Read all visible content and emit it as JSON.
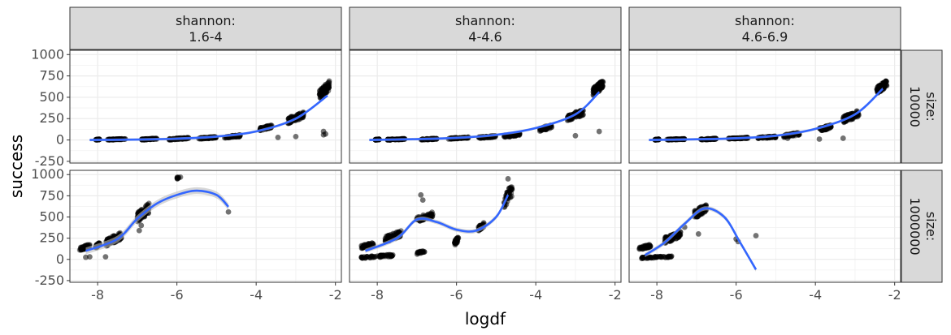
{
  "chart_data": {
    "type": "scatter",
    "xlabel": "logdf",
    "ylabel": "success",
    "xlim": [
      -8.7,
      -1.85
    ],
    "ylim": [
      -270,
      1050
    ],
    "x_ticks": [
      -8,
      -6,
      -4,
      -2
    ],
    "y_ticks": [
      -250,
      0,
      250,
      500,
      750,
      1000
    ],
    "grid": true,
    "colors": {
      "points": "#000000",
      "smooth": "#3366ff",
      "band": "#bdbdbd",
      "strip": "#d9d9d9"
    },
    "column_facets": [
      {
        "line1": "shannon:",
        "line2": "1.6-4"
      },
      {
        "line1": "shannon:",
        "line2": "4-4.6"
      },
      {
        "line1": "shannon:",
        "line2": "4.6-6.9"
      }
    ],
    "row_facets": [
      {
        "line1": "size:",
        "line2": "10000"
      },
      {
        "line1": "size:",
        "line2": "1000000"
      }
    ],
    "panels": [
      {
        "col": 0,
        "row": 0,
        "clusters": [
          {
            "x": [
              -8.05,
              -7.95
            ],
            "y": [
              0,
              10
            ],
            "n": 40
          },
          {
            "x": [
              -7.75,
              -7.3
            ],
            "y": [
              0,
              15
            ],
            "n": 60
          },
          {
            "x": [
              -6.9,
              -6.5
            ],
            "y": [
              0,
              20
            ],
            "n": 60
          },
          {
            "x": [
              -6.2,
              -5.7
            ],
            "y": [
              0,
              30
            ],
            "n": 60
          },
          {
            "x": [
              -5.45,
              -5.0
            ],
            "y": [
              10,
              40
            ],
            "n": 60
          },
          {
            "x": [
              -4.8,
              -4.4
            ],
            "y": [
              20,
              60
            ],
            "n": 60
          },
          {
            "x": [
              -3.9,
              -3.6
            ],
            "y": [
              110,
              180
            ],
            "n": 60
          },
          {
            "x": [
              -3.2,
              -2.8
            ],
            "y": [
              190,
              330
            ],
            "n": 80
          },
          {
            "x": [
              -2.4,
              -2.15
            ],
            "y": [
              470,
              700
            ],
            "n": 80
          }
        ],
        "outliers": [
          [
            -3.45,
            30
          ],
          [
            -3.0,
            40
          ],
          [
            -2.3,
            100
          ],
          [
            -2.3,
            60
          ],
          [
            -2.25,
            70
          ]
        ],
        "smooth": {
          "x": [
            -8.2,
            -7,
            -6,
            -5,
            -4,
            -3,
            -2.2
          ],
          "y": [
            0,
            5,
            15,
            40,
            100,
            250,
            520
          ]
        },
        "band": 15
      },
      {
        "col": 1,
        "row": 0,
        "clusters": [
          {
            "x": [
              -8.05,
              -7.95
            ],
            "y": [
              0,
              10
            ],
            "n": 40
          },
          {
            "x": [
              -7.75,
              -7.3
            ],
            "y": [
              0,
              15
            ],
            "n": 60
          },
          {
            "x": [
              -6.9,
              -6.5
            ],
            "y": [
              0,
              20
            ],
            "n": 60
          },
          {
            "x": [
              -6.2,
              -5.7
            ],
            "y": [
              10,
              35
            ],
            "n": 60
          },
          {
            "x": [
              -5.45,
              -5.0
            ],
            "y": [
              20,
              50
            ],
            "n": 60
          },
          {
            "x": [
              -4.8,
              -4.4
            ],
            "y": [
              30,
              80
            ],
            "n": 60
          },
          {
            "x": [
              -3.9,
              -3.6
            ],
            "y": [
              100,
              180
            ],
            "n": 60
          },
          {
            "x": [
              -3.2,
              -2.8
            ],
            "y": [
              220,
              360
            ],
            "n": 80
          },
          {
            "x": [
              -2.55,
              -2.3
            ],
            "y": [
              520,
              700
            ],
            "n": 80
          }
        ],
        "outliers": [
          [
            -3.0,
            50
          ],
          [
            -2.4,
            100
          ]
        ],
        "smooth": {
          "x": [
            -8.2,
            -7,
            -6,
            -5,
            -4,
            -3,
            -2.4
          ],
          "y": [
            0,
            10,
            25,
            60,
            140,
            300,
            560
          ]
        },
        "band": 15
      },
      {
        "col": 2,
        "row": 0,
        "clusters": [
          {
            "x": [
              -8.05,
              -7.95
            ],
            "y": [
              0,
              10
            ],
            "n": 40
          },
          {
            "x": [
              -7.75,
              -7.3
            ],
            "y": [
              0,
              15
            ],
            "n": 60
          },
          {
            "x": [
              -6.9,
              -6.5
            ],
            "y": [
              0,
              20
            ],
            "n": 60
          },
          {
            "x": [
              -6.2,
              -5.7
            ],
            "y": [
              10,
              30
            ],
            "n": 60
          },
          {
            "x": [
              -5.45,
              -5.0
            ],
            "y": [
              15,
              45
            ],
            "n": 60
          },
          {
            "x": [
              -4.8,
              -4.4
            ],
            "y": [
              30,
              90
            ],
            "n": 60
          },
          {
            "x": [
              -3.9,
              -3.6
            ],
            "y": [
              100,
              180
            ],
            "n": 60
          },
          {
            "x": [
              -3.3,
              -2.9
            ],
            "y": [
              200,
              350
            ],
            "n": 80
          },
          {
            "x": [
              -2.45,
              -2.2
            ],
            "y": [
              540,
              700
            ],
            "n": 80
          }
        ],
        "outliers": [
          [
            -3.9,
            10
          ],
          [
            -3.3,
            20
          ],
          [
            -4.7,
            20
          ]
        ],
        "smooth": {
          "x": [
            -8.2,
            -7,
            -6,
            -5,
            -4,
            -3,
            -2.3
          ],
          "y": [
            0,
            8,
            20,
            50,
            130,
            300,
            600
          ]
        },
        "band": 15
      },
      {
        "col": 0,
        "row": 1,
        "clusters": [
          {
            "x": [
              -8.45,
              -8.2
            ],
            "y": [
              100,
              180
            ],
            "n": 40
          },
          {
            "x": [
              -8.05,
              -7.95
            ],
            "y": [
              130,
              200
            ],
            "n": 30
          },
          {
            "x": [
              -7.8,
              -7.4
            ],
            "y": [
              150,
              320
            ],
            "n": 80
          },
          {
            "x": [
              -7.0,
              -6.7
            ],
            "y": [
              430,
              670
            ],
            "n": 80
          },
          {
            "x": [
              -6.0,
              -5.9
            ],
            "y": [
              940,
              1000
            ],
            "n": 8
          }
        ],
        "outliers": [
          [
            -8.2,
            30
          ],
          [
            -8.3,
            25
          ],
          [
            -7.8,
            30
          ],
          [
            -6.95,
            340
          ],
          [
            -6.9,
            400
          ],
          [
            -4.7,
            560
          ]
        ],
        "smooth": {
          "x": [
            -8.3,
            -7.5,
            -7,
            -6.5,
            -6,
            -5.5,
            -5,
            -4.7
          ],
          "y": [
            100,
            240,
            480,
            660,
            760,
            810,
            760,
            620
          ]
        },
        "band": 40
      },
      {
        "col": 1,
        "row": 1,
        "clusters": [
          {
            "x": [
              -8.4,
              -8.1
            ],
            "y": [
              130,
              200
            ],
            "n": 40
          },
          {
            "x": [
              -8.4,
              -7.6
            ],
            "y": [
              10,
              60
            ],
            "n": 60
          },
          {
            "x": [
              -7.8,
              -7.4
            ],
            "y": [
              200,
              340
            ],
            "n": 80
          },
          {
            "x": [
              -7.0,
              -6.6
            ],
            "y": [
              440,
              560
            ],
            "n": 60
          },
          {
            "x": [
              -7.0,
              -6.8
            ],
            "y": [
              60,
              110
            ],
            "n": 20
          },
          {
            "x": [
              -6.05,
              -5.95
            ],
            "y": [
              160,
              280
            ],
            "n": 30
          },
          {
            "x": [
              -5.45,
              -5.3
            ],
            "y": [
              330,
              440
            ],
            "n": 30
          },
          {
            "x": [
              -4.8,
              -4.6
            ],
            "y": [
              600,
              900
            ],
            "n": 40
          }
        ],
        "outliers": [
          [
            -6.9,
            760
          ],
          [
            -6.85,
            700
          ],
          [
            -4.7,
            950
          ]
        ],
        "smooth": {
          "x": [
            -8.3,
            -7.5,
            -7,
            -6.5,
            -6,
            -5.5,
            -5,
            -4.7
          ],
          "y": [
            100,
            250,
            470,
            440,
            350,
            340,
            500,
            760
          ]
        },
        "band": 25
      },
      {
        "col": 2,
        "row": 1,
        "clusters": [
          {
            "x": [
              -8.45,
              -8.15
            ],
            "y": [
              110,
              180
            ],
            "n": 40
          },
          {
            "x": [
              -8.4,
              -7.6
            ],
            "y": [
              10,
              40
            ],
            "n": 50
          },
          {
            "x": [
              -7.8,
              -7.4
            ],
            "y": [
              190,
              330
            ],
            "n": 80
          },
          {
            "x": [
              -7.05,
              -6.75
            ],
            "y": [
              480,
              660
            ],
            "n": 80
          }
        ],
        "outliers": [
          [
            -7.3,
            380
          ],
          [
            -6.95,
            300
          ],
          [
            -6.0,
            240
          ],
          [
            -5.95,
            210
          ],
          [
            -5.5,
            280
          ]
        ],
        "smooth": {
          "x": [
            -8.3,
            -7.8,
            -7.3,
            -6.8,
            -6.3,
            -5.9,
            -5.5
          ],
          "y": [
            50,
            200,
            420,
            600,
            500,
            200,
            -120
          ]
        },
        "band": 25
      }
    ]
  }
}
